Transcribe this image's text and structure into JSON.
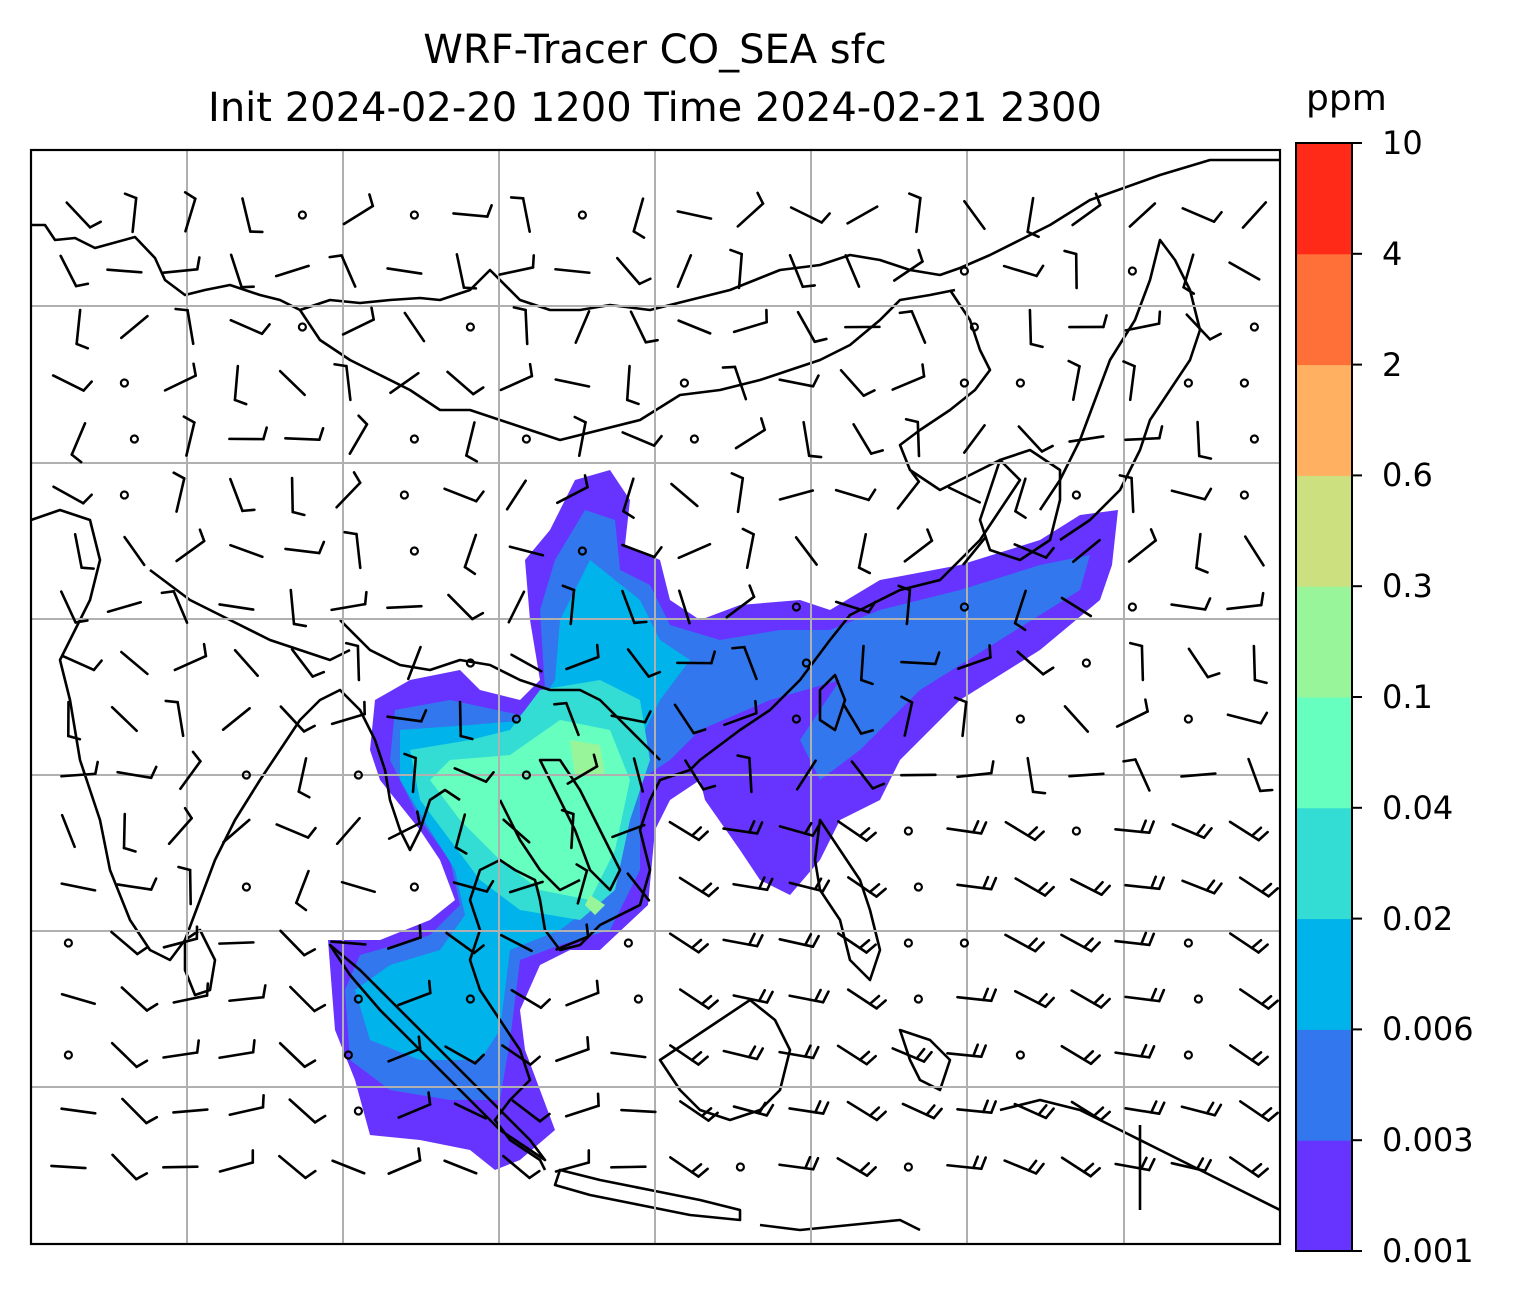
{
  "title_line1": "WRF-Tracer CO_SEA sfc",
  "title_line2": "Init 2024-02-20 1200 Time 2024-02-21 2300",
  "colorbar": {
    "unit": "ppm",
    "levels": [
      "0.001",
      "0.003",
      "0.006",
      "0.02",
      "0.04",
      "0.1",
      "0.3",
      "0.6",
      "2",
      "4",
      "10"
    ],
    "colors": [
      "#6633ff",
      "#3377ee",
      "#00b3ea",
      "#33ddd3",
      "#66ffc0",
      "#99f599",
      "#cce080",
      "#ffb060",
      "#ff7038",
      "#ff2b18"
    ]
  },
  "map": {
    "background": "#ffffff",
    "gridlines": "on",
    "grid_color": "#b0b0b0",
    "coastline_color": "#000000",
    "wind_barbs": "on",
    "calm_wind_markers": "on"
  }
}
